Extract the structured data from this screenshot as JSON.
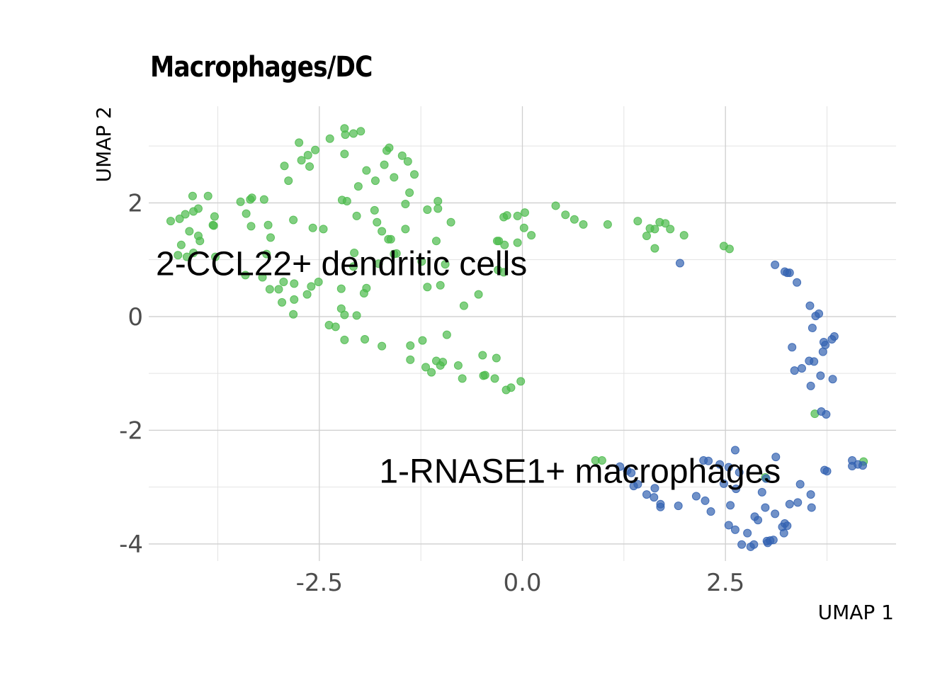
{
  "chart_data": {
    "type": "scatter",
    "title": "Macrophages/DC",
    "xlabel": "UMAP 1",
    "ylabel": "UMAP 2",
    "xlim": [
      -4.6,
      4.6
    ],
    "ylim": [
      -4.3,
      3.7
    ],
    "xticks": [
      {
        "value": -2.5,
        "label": "-2.5"
      },
      {
        "value": 0,
        "label": "0.0"
      },
      {
        "value": 2.5,
        "label": "2.5"
      }
    ],
    "yticks": [
      {
        "value": -4,
        "label": "-4"
      },
      {
        "value": -2,
        "label": "-2"
      },
      {
        "value": 0,
        "label": "0"
      },
      {
        "value": 2,
        "label": "2"
      }
    ],
    "grid": true,
    "legend": "none",
    "annotations": [
      {
        "text": "2-CCL22+ dendritic cells",
        "x": -4.6,
        "y": 0.95
      },
      {
        "text": "1-RNASE1+ macrophages",
        "x": -1.85,
        "y": -2.7
      }
    ],
    "series": [
      {
        "color": "#4cbb4c",
        "points": [
          [
            -2.19,
            3.31
          ],
          [
            -2.18,
            3.2
          ],
          [
            -2.08,
            3.22
          ],
          [
            -1.99,
            3.26
          ],
          [
            -2.37,
            3.13
          ],
          [
            -2.75,
            3.06
          ],
          [
            -2.55,
            2.93
          ],
          [
            -2.64,
            2.84
          ],
          [
            -2.72,
            2.75
          ],
          [
            -2.19,
            2.86
          ],
          [
            -1.67,
            2.92
          ],
          [
            -1.64,
            2.97
          ],
          [
            -1.48,
            2.83
          ],
          [
            -1.41,
            2.73
          ],
          [
            -2.62,
            2.64
          ],
          [
            -2.93,
            2.65
          ],
          [
            -1.7,
            2.67
          ],
          [
            -1.92,
            2.57
          ],
          [
            -1.33,
            2.5
          ],
          [
            -1.58,
            2.45
          ],
          [
            -1.81,
            2.39
          ],
          [
            -2.88,
            2.39
          ],
          [
            -2.02,
            2.29
          ],
          [
            -1.39,
            2.18
          ],
          [
            -2.22,
            2.05
          ],
          [
            -2.16,
            2.03
          ],
          [
            -1.44,
            1.98
          ],
          [
            -1.04,
            2.03
          ],
          [
            -1.04,
            1.9
          ],
          [
            -1.17,
            1.88
          ],
          [
            -1.82,
            1.87
          ],
          [
            -2.04,
            1.77
          ],
          [
            -0.88,
            1.66
          ],
          [
            -1.44,
            1.54
          ],
          [
            -1.79,
            1.66
          ],
          [
            -1.73,
            1.5
          ],
          [
            -1.62,
            1.36
          ],
          [
            -1.65,
            1.36
          ],
          [
            -2.58,
            1.56
          ],
          [
            -2.82,
            1.7
          ],
          [
            -2.45,
            1.54
          ],
          [
            -1.06,
            1.33
          ],
          [
            -2.07,
            1.12
          ],
          [
            -1.58,
            1.1
          ],
          [
            -1.55,
            1.11
          ],
          [
            -0.31,
            1.33
          ],
          [
            -0.29,
            1.33
          ],
          [
            -0.23,
            1.75
          ],
          [
            -0.19,
            1.78
          ],
          [
            -0.06,
            1.77
          ],
          [
            0.03,
            1.83
          ],
          [
            0.02,
            1.56
          ],
          [
            0.11,
            1.43
          ],
          [
            -0.22,
            1.26
          ],
          [
            -0.06,
            1.3
          ],
          [
            0.41,
            1.95
          ],
          [
            0.53,
            1.79
          ],
          [
            0.64,
            1.71
          ],
          [
            0.75,
            1.62
          ],
          [
            1.05,
            1.62
          ],
          [
            1.42,
            1.68
          ],
          [
            1.69,
            1.66
          ],
          [
            1.76,
            1.64
          ],
          [
            1.82,
            1.54
          ],
          [
            1.63,
            1.54
          ],
          [
            1.57,
            1.55
          ],
          [
            1.53,
            1.42
          ],
          [
            1.99,
            1.43
          ],
          [
            1.63,
            1.2
          ],
          [
            2.48,
            1.24
          ],
          [
            2.55,
            1.19
          ],
          [
            -2.08,
            0.88
          ],
          [
            -1.77,
            0.93
          ],
          [
            -1.24,
            0.97
          ],
          [
            -0.95,
            0.92
          ],
          [
            -0.3,
            0.82
          ],
          [
            -0.23,
            0.78
          ],
          [
            -1.17,
            0.52
          ],
          [
            -1.01,
            0.55
          ],
          [
            -0.54,
            0.39
          ],
          [
            -0.72,
            0.19
          ],
          [
            -2.23,
            0.49
          ],
          [
            -1.92,
            0.5
          ],
          [
            -1.95,
            0.41
          ],
          [
            -2.23,
            0.14
          ],
          [
            -2.19,
            0.03
          ],
          [
            -2.04,
            0.02
          ],
          [
            -2.81,
            0.3
          ],
          [
            -2.82,
            0.04
          ],
          [
            -2.3,
            -0.18
          ],
          [
            -2.38,
            -0.15
          ],
          [
            -2.19,
            -0.41
          ],
          [
            -1.94,
            -0.4
          ],
          [
            -1.73,
            -0.52
          ],
          [
            -1.38,
            -0.51
          ],
          [
            -1.23,
            -0.42
          ],
          [
            -0.93,
            -0.32
          ],
          [
            -1.06,
            -0.78
          ],
          [
            -0.98,
            -0.8
          ],
          [
            -1.01,
            -0.86
          ],
          [
            -1.19,
            -0.89
          ],
          [
            -1.12,
            -0.98
          ],
          [
            -0.79,
            -0.86
          ],
          [
            -1.38,
            -0.76
          ],
          [
            -0.74,
            -1.09
          ],
          [
            -0.49,
            -0.68
          ],
          [
            -0.32,
            -0.73
          ],
          [
            -0.46,
            -1.03
          ],
          [
            -0.48,
            -1.04
          ],
          [
            -0.34,
            -1.09
          ],
          [
            -0.2,
            -1.29
          ],
          [
            -0.14,
            -1.25
          ],
          [
            -0.02,
            -1.14
          ],
          [
            -3.0,
            0.48
          ],
          [
            -3.11,
            0.48
          ],
          [
            -2.94,
            0.61
          ],
          [
            -2.81,
            0.58
          ],
          [
            -2.6,
            0.53
          ],
          [
            -2.51,
            0.61
          ],
          [
            -2.65,
            0.39
          ],
          [
            -2.96,
            0.25
          ],
          [
            -3.2,
            0.69
          ],
          [
            -3.41,
            0.73
          ],
          [
            -3.15,
            1.1
          ],
          [
            -3.1,
            1.39
          ],
          [
            -3.13,
            1.61
          ],
          [
            -3.34,
            1.59
          ],
          [
            -3.4,
            1.81
          ],
          [
            -3.47,
            2.02
          ],
          [
            -3.35,
            2.06
          ],
          [
            -3.33,
            2.09
          ],
          [
            -3.18,
            2.06
          ],
          [
            -3.8,
            1.6
          ],
          [
            -3.79,
            1.76
          ],
          [
            -3.81,
            1.61
          ],
          [
            -3.78,
            1.05
          ],
          [
            -3.99,
            1.42
          ],
          [
            -4.05,
            1.85
          ],
          [
            -3.99,
            1.9
          ],
          [
            -4.06,
            2.12
          ],
          [
            -3.87,
            2.12
          ],
          [
            -4.15,
            1.8
          ],
          [
            -4.1,
            1.5
          ],
          [
            -4.22,
            1.72
          ],
          [
            -4.33,
            1.68
          ],
          [
            -4.2,
            1.26
          ],
          [
            -4.05,
            1.12
          ],
          [
            -4.13,
            1.05
          ],
          [
            -4.24,
            1.08
          ],
          [
            -3.97,
            1.33
          ],
          [
            0.9,
            -2.53
          ],
          [
            0.98,
            -2.53
          ],
          [
            3.6,
            -1.71
          ],
          [
            4.2,
            -2.55
          ],
          [
            2.99,
            -2.83
          ]
        ]
      },
      {
        "color": "#3362b1",
        "points": [
          [
            1.94,
            0.94
          ],
          [
            3.11,
            0.91
          ],
          [
            3.23,
            0.79
          ],
          [
            3.26,
            0.77
          ],
          [
            3.29,
            0.77
          ],
          [
            3.38,
            0.6
          ],
          [
            3.54,
            0.19
          ],
          [
            3.65,
            0.05
          ],
          [
            3.61,
            0.01
          ],
          [
            3.57,
            -0.2
          ],
          [
            3.71,
            -0.45
          ],
          [
            3.73,
            -0.5
          ],
          [
            3.7,
            -0.62
          ],
          [
            3.84,
            -0.35
          ],
          [
            3.81,
            -0.4
          ],
          [
            3.32,
            -0.54
          ],
          [
            3.53,
            -0.78
          ],
          [
            3.59,
            -0.79
          ],
          [
            3.44,
            -0.91
          ],
          [
            3.35,
            -0.95
          ],
          [
            3.67,
            -1.04
          ],
          [
            3.82,
            -1.1
          ],
          [
            3.55,
            -1.22
          ],
          [
            3.68,
            -1.67
          ],
          [
            3.74,
            -1.72
          ],
          [
            1.2,
            -2.64
          ],
          [
            1.29,
            -2.71
          ],
          [
            1.34,
            -2.75
          ],
          [
            1.37,
            -2.98
          ],
          [
            1.42,
            -2.95
          ],
          [
            1.63,
            -3.02
          ],
          [
            1.53,
            -3.13
          ],
          [
            1.62,
            -3.18
          ],
          [
            1.7,
            -3.3
          ],
          [
            1.7,
            -3.35
          ],
          [
            1.92,
            -3.33
          ],
          [
            2.14,
            -3.16
          ],
          [
            2.25,
            -3.24
          ],
          [
            2.32,
            -3.43
          ],
          [
            2.23,
            -2.53
          ],
          [
            2.29,
            -2.54
          ],
          [
            2.43,
            -2.6
          ],
          [
            2.54,
            -2.65
          ],
          [
            2.67,
            -2.74
          ],
          [
            2.62,
            -2.35
          ],
          [
            2.48,
            -2.94
          ],
          [
            2.63,
            -3.03
          ],
          [
            2.56,
            -3.32
          ],
          [
            2.54,
            -3.67
          ],
          [
            2.62,
            -3.75
          ],
          [
            2.77,
            -3.81
          ],
          [
            2.7,
            -4.01
          ],
          [
            2.81,
            -4.05
          ],
          [
            2.85,
            -4.01
          ],
          [
            2.9,
            -3.58
          ],
          [
            2.86,
            -3.52
          ],
          [
            3.11,
            -3.47
          ],
          [
            2.99,
            -3.36
          ],
          [
            2.95,
            -3.09
          ],
          [
            3.0,
            -2.85
          ],
          [
            3.12,
            -2.47
          ],
          [
            3.02,
            -3.98
          ],
          [
            3.01,
            -3.95
          ],
          [
            3.05,
            -3.94
          ],
          [
            3.09,
            -3.93
          ],
          [
            3.22,
            -3.81
          ],
          [
            3.23,
            -3.64
          ],
          [
            3.26,
            -3.68
          ],
          [
            3.2,
            -3.7
          ],
          [
            3.29,
            -3.3
          ],
          [
            3.39,
            -3.27
          ],
          [
            3.42,
            -2.95
          ],
          [
            3.55,
            -3.13
          ],
          [
            3.56,
            -3.36
          ],
          [
            3.72,
            -2.7
          ],
          [
            3.75,
            -2.72
          ],
          [
            4.06,
            -2.53
          ],
          [
            4.06,
            -2.63
          ],
          [
            4.13,
            -2.6
          ],
          [
            4.19,
            -2.62
          ]
        ]
      }
    ]
  }
}
